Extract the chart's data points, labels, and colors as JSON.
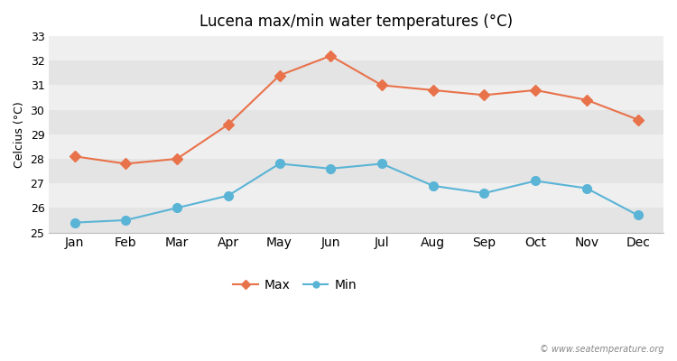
{
  "months": [
    "Jan",
    "Feb",
    "Mar",
    "Apr",
    "May",
    "Jun",
    "Jul",
    "Aug",
    "Sep",
    "Oct",
    "Nov",
    "Dec"
  ],
  "max_temps": [
    28.1,
    27.8,
    28.0,
    29.4,
    31.4,
    32.2,
    31.0,
    30.8,
    30.6,
    30.8,
    30.4,
    29.6
  ],
  "min_temps": [
    25.4,
    25.5,
    26.0,
    26.5,
    27.8,
    27.6,
    27.8,
    26.9,
    26.6,
    27.1,
    26.8,
    25.7
  ],
  "max_color": "#e8724a",
  "min_color": "#5ab4d6",
  "bg_color": "#ffffff",
  "plot_bg_light": "#efefef",
  "plot_bg_dark": "#e4e4e4",
  "title": "Lucena max/min water temperatures (°C)",
  "ylabel": "Celcius (°C)",
  "ylim": [
    25,
    33
  ],
  "yticks": [
    25,
    26,
    27,
    28,
    29,
    30,
    31,
    32,
    33
  ],
  "legend_max": "Max",
  "legend_min": "Min",
  "watermark": "© www.seatemperature.org",
  "title_fontsize": 12,
  "axis_fontsize": 9,
  "legend_fontsize": 10,
  "max_marker_size": 6,
  "min_marker_size": 7,
  "linewidth": 1.5
}
